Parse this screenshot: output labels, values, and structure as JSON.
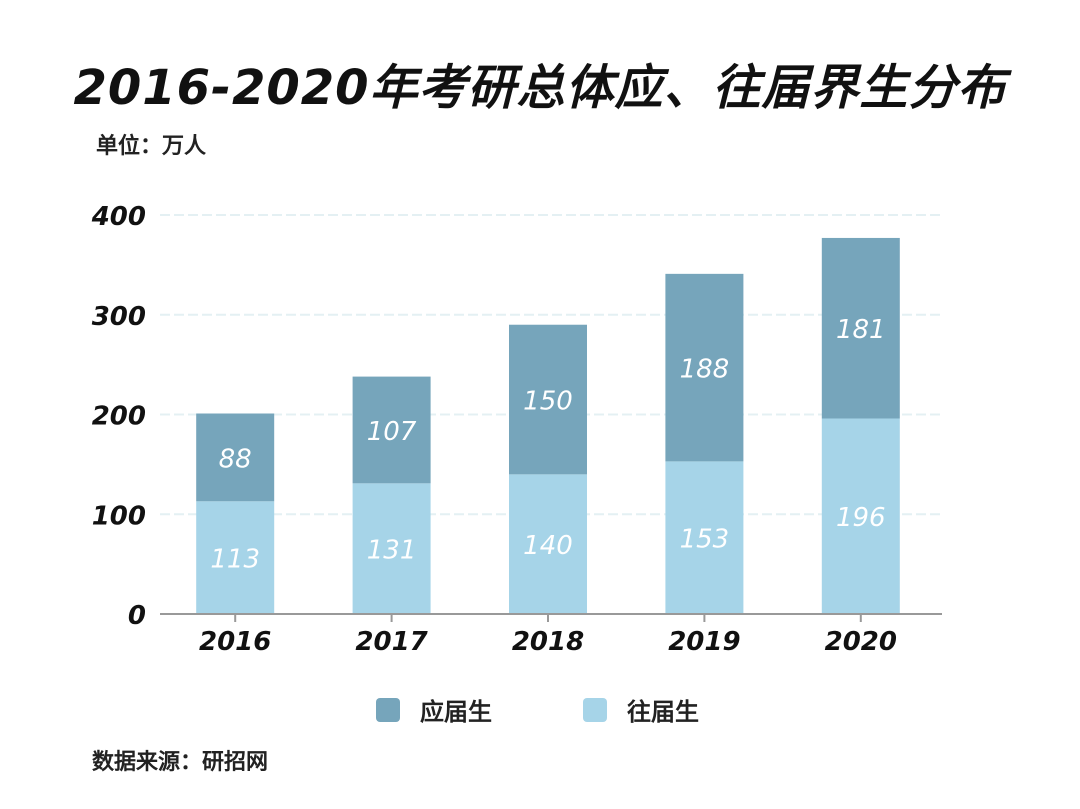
{
  "chart_data": {
    "type": "bar",
    "stacked": true,
    "title": "2016-2020年考研总体应、往届界生分布",
    "unit_label": "单位：万人",
    "source": "数据来源：研招网",
    "categories": [
      "2016",
      "2017",
      "2018",
      "2019",
      "2020"
    ],
    "series": [
      {
        "name": "往届生",
        "values": [
          113,
          131,
          140,
          153,
          196
        ],
        "color": "#a6d4e8"
      },
      {
        "name": "应届生",
        "values": [
          88,
          107,
          150,
          188,
          181
        ],
        "color": "#76a5bb"
      }
    ],
    "yticks": [
      "0",
      "100",
      "200",
      "300",
      "400"
    ],
    "ylim": [
      0,
      400
    ],
    "grid": true,
    "legend": "bottom"
  }
}
